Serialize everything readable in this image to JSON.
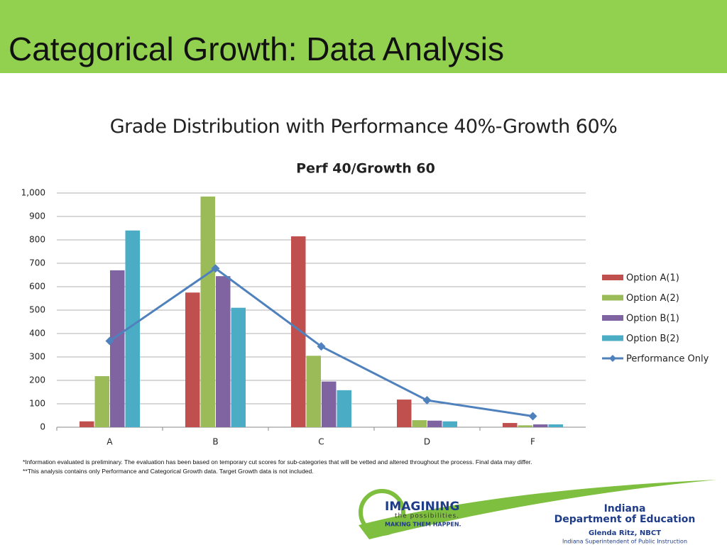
{
  "slide": {
    "title": "Categorical Growth: Data Analysis",
    "subtitle": "Grade Distribution with Performance 40%-Growth 60%",
    "footnotes": [
      "*Information evaluated is preliminary. The evaluation has been based on temporary cut scores for sub-categories that will be vetted and altered throughout the process. Final data may differ.",
      "**This analysis contains only Performance and Categorical Growth data. Target Growth data is not included."
    ],
    "logo": {
      "line1": "IMAGINING",
      "line2": "the possibilities.",
      "line3": "MAKING THEM HAPPEN."
    },
    "department": {
      "state": "Indiana",
      "name": "Department of Education",
      "person": "Glenda Ritz, NBCT",
      "role": "Indiana Superintendent of Public Instruction"
    }
  },
  "chart_data": {
    "type": "bar",
    "title": "Perf 40/Growth 60",
    "categories": [
      "A",
      "B",
      "C",
      "D",
      "F"
    ],
    "series": [
      {
        "name": "Option A(1)",
        "color": "#c0504d",
        "values": [
          25,
          575,
          815,
          118,
          18
        ]
      },
      {
        "name": "Option A(2)",
        "color": "#9bbb59",
        "values": [
          218,
          985,
          305,
          30,
          8
        ]
      },
      {
        "name": "Option B(1)",
        "color": "#8064a2",
        "values": [
          670,
          645,
          195,
          28,
          12
        ]
      },
      {
        "name": "Option B(2)",
        "color": "#4bacc6",
        "values": [
          840,
          510,
          158,
          25,
          12
        ]
      },
      {
        "name": "Performance Only",
        "type": "line",
        "color": "#4f81bd",
        "values": [
          368,
          678,
          345,
          115,
          47
        ]
      }
    ],
    "ylim": [
      0,
      1000
    ],
    "yticks": [
      0,
      100,
      200,
      300,
      400,
      500,
      600,
      700,
      800,
      900,
      {
        "value": 1000,
        "label": "1,000"
      }
    ],
    "grid": true,
    "legend": "right"
  }
}
